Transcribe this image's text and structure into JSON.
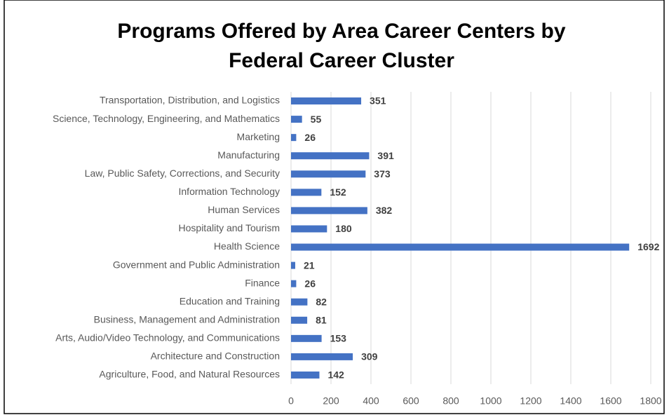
{
  "chart_data": {
    "type": "bar",
    "orientation": "horizontal",
    "title": [
      "Programs Offered by Area Career Centers by",
      "Federal Career Cluster"
    ],
    "categories": [
      "Transportation, Distribution, and Logistics",
      "Science, Technology, Engineering, and Mathematics",
      "Marketing",
      "Manufacturing",
      "Law, Public Safety, Corrections, and Security",
      "Information Technology",
      "Human Services",
      "Hospitality and Tourism",
      "Health Science",
      "Government and Public Administration",
      "Finance",
      "Education and Training",
      "Business, Management and Administration",
      "Arts, Audio/Video Technology, and Communications",
      "Architecture and Construction",
      "Agriculture, Food, and Natural Resources"
    ],
    "values": [
      351,
      55,
      26,
      391,
      373,
      152,
      382,
      180,
      1692,
      21,
      26,
      82,
      81,
      153,
      309,
      142
    ],
    "color": "#4472c4",
    "xlim": [
      0,
      1800
    ],
    "xticks": [
      0,
      200,
      400,
      600,
      800,
      1000,
      1200,
      1400,
      1600,
      1800
    ],
    "grid": true
  }
}
